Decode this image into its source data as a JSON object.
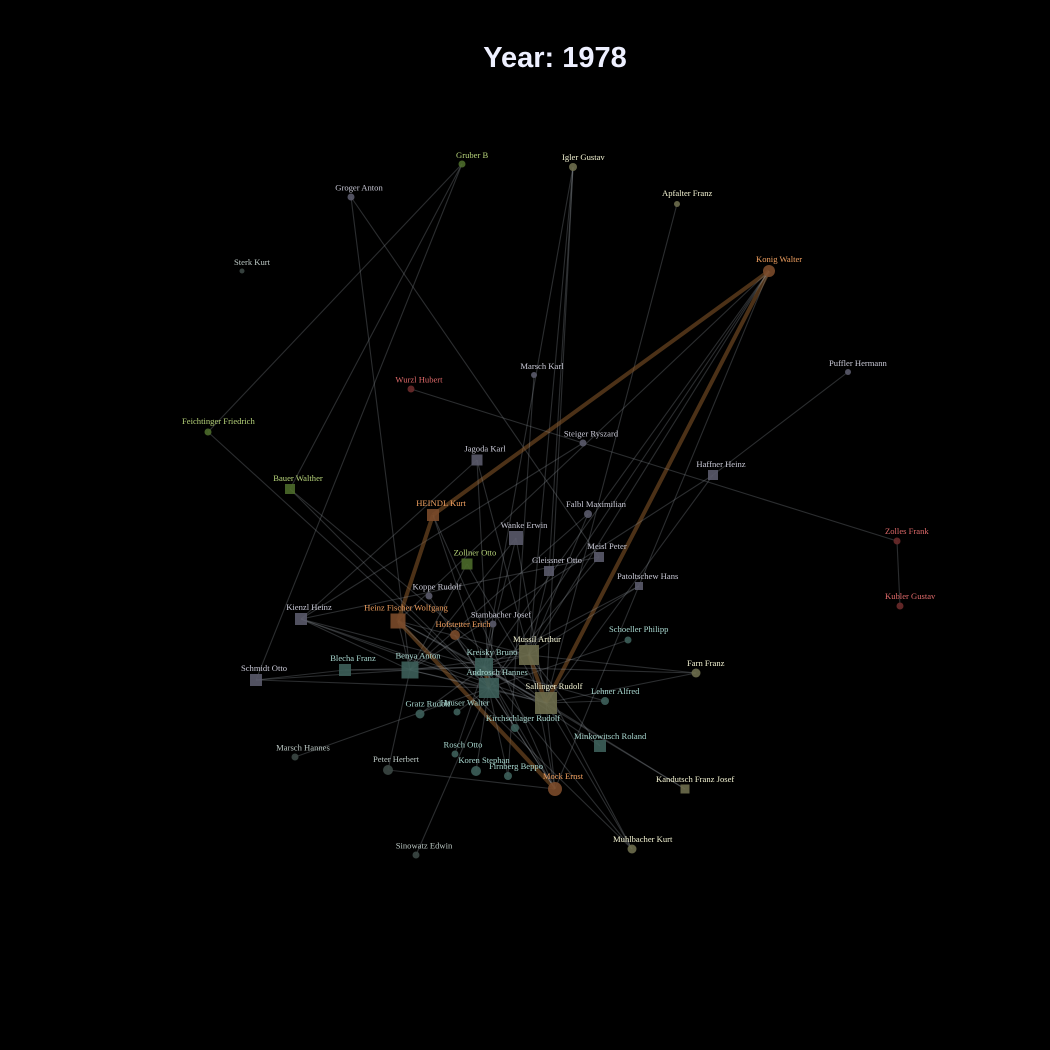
{
  "title": "Year: 1978",
  "groups": {
    "grey": {
      "fill": "#5a5a6a",
      "text": "#c9c9d6"
    },
    "teal": {
      "fill": "#3d5f5a",
      "text": "#a9d8d0"
    },
    "olive": {
      "fill": "#4b6a2a",
      "text": "#b7d47a"
    },
    "orange": {
      "fill": "#7a4a2a",
      "text": "#f0a060"
    },
    "red": {
      "fill": "#6a2a2a",
      "text": "#e06a6a"
    },
    "sand": {
      "fill": "#6d6d4c",
      "text": "#f3f3d2"
    },
    "dark": {
      "fill": "#3b4744",
      "text": "#bcc8c4"
    }
  },
  "nodes": [
    {
      "id": "Gruber B",
      "group": "olive",
      "shape": "circle"
    },
    {
      "id": "Igler Gustav",
      "group": "sand",
      "shape": "circle"
    },
    {
      "id": "Groger Anton",
      "group": "grey",
      "shape": "circle"
    },
    {
      "id": "Apfalter Franz",
      "group": "sand",
      "shape": "circle"
    },
    {
      "id": "Sterk Kurt",
      "group": "dark",
      "shape": "circle"
    },
    {
      "id": "Konig Walter",
      "group": "orange",
      "shape": "circle"
    },
    {
      "id": "Puffler Hermann",
      "group": "grey",
      "shape": "circle"
    },
    {
      "id": "Marsch Karl",
      "group": "grey",
      "shape": "circle"
    },
    {
      "id": "Wurzl Hubert",
      "group": "red",
      "shape": "circle"
    },
    {
      "id": "Feichtinger Friedrich",
      "group": "olive",
      "shape": "circle"
    },
    {
      "id": "Steiger Ryszard",
      "group": "grey",
      "shape": "circle"
    },
    {
      "id": "Jagoda Karl",
      "group": "grey",
      "shape": "square"
    },
    {
      "id": "Haffner Heinz",
      "group": "grey",
      "shape": "square"
    },
    {
      "id": "Bauer Walther",
      "group": "olive",
      "shape": "square"
    },
    {
      "id": "HEINDL Kurt",
      "group": "orange",
      "shape": "square"
    },
    {
      "id": "Falbl Maximilian",
      "group": "grey",
      "shape": "circle"
    },
    {
      "id": "Wanke Erwin",
      "group": "grey",
      "shape": "square"
    },
    {
      "id": "Zolles Frank",
      "group": "red",
      "shape": "circle"
    },
    {
      "id": "Meisl Peter",
      "group": "grey",
      "shape": "square"
    },
    {
      "id": "Zollner Otto",
      "group": "olive",
      "shape": "square"
    },
    {
      "id": "Gleissner Otto",
      "group": "grey",
      "shape": "square"
    },
    {
      "id": "Patoltschew Hans",
      "group": "grey",
      "shape": "square"
    },
    {
      "id": "Koppe Rudolf",
      "group": "grey",
      "shape": "circle"
    },
    {
      "id": "Kubler Gustav",
      "group": "red",
      "shape": "circle"
    },
    {
      "id": "Kienzl Heinz",
      "group": "grey",
      "shape": "square"
    },
    {
      "id": "Heinz Fischer Wolfgang",
      "group": "orange",
      "shape": "square"
    },
    {
      "id": "Stambacher Josef",
      "group": "grey",
      "shape": "circle"
    },
    {
      "id": "Hofstetter Erich",
      "group": "orange",
      "shape": "circle"
    },
    {
      "id": "Schoeller Philipp",
      "group": "teal",
      "shape": "circle"
    },
    {
      "id": "Mussil Arthur",
      "group": "sand",
      "shape": "square"
    },
    {
      "id": "Kreisky Bruno",
      "group": "teal",
      "shape": "square"
    },
    {
      "id": "Benya Anton",
      "group": "teal",
      "shape": "square"
    },
    {
      "id": "Blecha Franz",
      "group": "teal",
      "shape": "square"
    },
    {
      "id": "Farn Franz",
      "group": "sand",
      "shape": "circle"
    },
    {
      "id": "Schmidt Otto",
      "group": "grey",
      "shape": "square"
    },
    {
      "id": "Androsch Hannes",
      "group": "teal",
      "shape": "square"
    },
    {
      "id": "Sallinger Rudolf",
      "group": "sand",
      "shape": "square"
    },
    {
      "id": "Lehner Alfred",
      "group": "teal",
      "shape": "circle"
    },
    {
      "id": "Gratz Rudolf",
      "group": "teal",
      "shape": "circle"
    },
    {
      "id": "Hauser Walter",
      "group": "teal",
      "shape": "circle"
    },
    {
      "id": "Kirchschlager Rudolf",
      "group": "teal",
      "shape": "circle"
    },
    {
      "id": "Minkowitsch Roland",
      "group": "teal",
      "shape": "square"
    },
    {
      "id": "Marsch Hannes",
      "group": "dark",
      "shape": "circle"
    },
    {
      "id": "Rosch Otto",
      "group": "teal",
      "shape": "circle"
    },
    {
      "id": "Peter Herbert",
      "group": "dark",
      "shape": "circle"
    },
    {
      "id": "Koren Stephan",
      "group": "teal",
      "shape": "circle"
    },
    {
      "id": "Firnberg Beppo",
      "group": "teal",
      "shape": "circle"
    },
    {
      "id": "Mock Ernst",
      "group": "orange",
      "shape": "circle"
    },
    {
      "id": "Kandutsch Franz Josef",
      "group": "sand",
      "shape": "square"
    },
    {
      "id": "Muhlbacher Kurt",
      "group": "sand",
      "shape": "circle"
    },
    {
      "id": "Sinowatz Edwin",
      "group": "dark",
      "shape": "circle"
    }
  ],
  "edges": [
    [
      "Gruber B",
      "Bauer Walther"
    ],
    [
      "Gruber B",
      "Feichtinger Friedrich"
    ],
    [
      "Gruber B",
      "Schmidt Otto"
    ],
    [
      "Igler Gustav",
      "Gleissner Otto"
    ],
    [
      "Igler Gustav",
      "Sallinger Rudolf"
    ],
    [
      "Igler Gustav",
      "Kreisky Bruno"
    ],
    [
      "Igler Gustav",
      "Mussil Arthur"
    ],
    [
      "Groger Anton",
      "Benya Anton"
    ],
    [
      "Groger Anton",
      "Meisl Peter"
    ],
    [
      "Apfalter Franz",
      "Sallinger Rudolf"
    ],
    [
      "Konig Walter",
      "HEINDL Kurt"
    ],
    [
      "Konig Walter",
      "Heinz Fischer Wolfgang"
    ],
    [
      "Konig Walter",
      "Mussil Arthur"
    ],
    [
      "Konig Walter",
      "Sallinger Rudolf"
    ],
    [
      "Konig Walter",
      "Androsch Hannes"
    ],
    [
      "Konig Walter",
      "Mock Ernst"
    ],
    [
      "Konig Walter",
      "Kreisky Bruno"
    ],
    [
      "Puffler Hermann",
      "Haffner Heinz"
    ],
    [
      "Wurzl Hubert",
      "Steiger Ryszard"
    ],
    [
      "Marsch Karl",
      "Firnberg Beppo"
    ],
    [
      "Steiger Ryszard",
      "Zolles Frank"
    ],
    [
      "Steiger Ryszard",
      "Kienzl Heinz"
    ],
    [
      "Zolles Frank",
      "Kubler Gustav"
    ],
    [
      "Feichtinger Friedrich",
      "Androsch Hannes"
    ],
    [
      "Jagoda Karl",
      "Mussil Arthur"
    ],
    [
      "Jagoda Karl",
      "Kienzl Heinz"
    ],
    [
      "Jagoda Karl",
      "Androsch Hannes"
    ],
    [
      "Haffner Heinz",
      "Sallinger Rudolf"
    ],
    [
      "Haffner Heinz",
      "Benya Anton"
    ],
    [
      "Bauer Walther",
      "Sallinger Rudolf"
    ],
    [
      "Bauer Walther",
      "Androsch Hannes"
    ],
    [
      "HEINDL Kurt",
      "Heinz Fischer Wolfgang"
    ],
    [
      "HEINDL Kurt",
      "Kreisky Bruno"
    ],
    [
      "HEINDL Kurt",
      "Mock Ernst"
    ],
    [
      "Falbl Maximilian",
      "Benya Anton"
    ],
    [
      "Falbl Maximilian",
      "Mussil Arthur"
    ],
    [
      "Wanke Erwin",
      "Kreisky Bruno"
    ],
    [
      "Wanke Erwin",
      "Sallinger Rudolf"
    ],
    [
      "Wanke Erwin",
      "Benya Anton"
    ],
    [
      "Meisl Peter",
      "Androsch Hannes"
    ],
    [
      "Meisl Peter",
      "Kienzl Heinz"
    ],
    [
      "Zollner Otto",
      "Sallinger Rudolf"
    ],
    [
      "Zollner Otto",
      "Benya Anton"
    ],
    [
      "Gleissner Otto",
      "Mussil Arthur"
    ],
    [
      "Patoltschew Hans",
      "Mussil Arthur"
    ],
    [
      "Patoltschew Hans",
      "Kreisky Bruno"
    ],
    [
      "Koppe Rudolf",
      "Androsch Hannes"
    ],
    [
      "Kienzl Heinz",
      "Kreisky Bruno"
    ],
    [
      "Kienzl Heinz",
      "Benya Anton"
    ],
    [
      "Kienzl Heinz",
      "Androsch Hannes"
    ],
    [
      "Kienzl Heinz",
      "Sallinger Rudolf"
    ],
    [
      "Heinz Fischer Wolfgang",
      "Kreisky Bruno"
    ],
    [
      "Heinz Fischer Wolfgang",
      "Mussil Arthur"
    ],
    [
      "Heinz Fischer Wolfgang",
      "Sallinger Rudolf"
    ],
    [
      "Heinz Fischer Wolfgang",
      "Benya Anton"
    ],
    [
      "Heinz Fischer Wolfgang",
      "Mock Ernst"
    ],
    [
      "Stambacher Josef",
      "Androsch Hannes"
    ],
    [
      "Hofstetter Erich",
      "Kreisky Bruno"
    ],
    [
      "Hofstetter Erich",
      "Mock Ernst"
    ],
    [
      "Schoeller Philipp",
      "Androsch Hannes"
    ],
    [
      "Mussil Arthur",
      "Sallinger Rudolf"
    ],
    [
      "Mussil Arthur",
      "Benya Anton"
    ],
    [
      "Mussil Arthur",
      "Kreisky Bruno"
    ],
    [
      "Mussil Arthur",
      "Farn Franz"
    ],
    [
      "Kreisky Bruno",
      "Androsch Hannes"
    ],
    [
      "Kreisky Bruno",
      "Benya Anton"
    ],
    [
      "Kreisky Bruno",
      "Sallinger Rudolf"
    ],
    [
      "Kreisky Bruno",
      "Blecha Franz"
    ],
    [
      "Benya Anton",
      "Sallinger Rudolf"
    ],
    [
      "Benya Anton",
      "Androsch Hannes"
    ],
    [
      "Benya Anton",
      "Schmidt Otto"
    ],
    [
      "Benya Anton",
      "Blecha Franz"
    ],
    [
      "Blecha Franz",
      "Schmidt Otto"
    ],
    [
      "Farn Franz",
      "Kreisky Bruno"
    ],
    [
      "Farn Franz",
      "Sallinger Rudolf"
    ],
    [
      "Schmidt Otto",
      "Androsch Hannes"
    ],
    [
      "Androsch Hannes",
      "Sallinger Rudolf"
    ],
    [
      "Androsch Hannes",
      "Mock Ernst"
    ],
    [
      "Sallinger Rudolf",
      "Mock Ernst"
    ],
    [
      "Sallinger Rudolf",
      "Muhlbacher Kurt"
    ],
    [
      "Sallinger Rudolf",
      "Lehner Alfred"
    ],
    [
      "Sallinger Rudolf",
      "Kandutsch Franz Josef"
    ],
    [
      "Lehner Alfred",
      "Kreisky Bruno"
    ],
    [
      "Gratz Rudolf",
      "Kreisky Bruno"
    ],
    [
      "Hauser Walter",
      "Androsch Hannes"
    ],
    [
      "Kirchschlager Rudolf",
      "Kreisky Bruno"
    ],
    [
      "Minkowitsch Roland",
      "Mussil Arthur"
    ],
    [
      "Minkowitsch Roland",
      "Kreisky Bruno"
    ],
    [
      "Marsch Hannes",
      "Androsch Hannes"
    ],
    [
      "Rosch Otto",
      "Kreisky Bruno"
    ],
    [
      "Peter Herbert",
      "Mock Ernst"
    ],
    [
      "Peter Herbert",
      "Benya Anton"
    ],
    [
      "Koren Stephan",
      "Androsch Hannes"
    ],
    [
      "Firnberg Beppo",
      "Kreisky Bruno"
    ],
    [
      "Mock Ernst",
      "Kreisky Bruno"
    ],
    [
      "Mock Ernst",
      "Mussil Arthur"
    ],
    [
      "Kandutsch Franz Josef",
      "Kreisky Bruno"
    ],
    [
      "Muhlbacher Kurt",
      "Mussil Arthur"
    ],
    [
      "Muhlbacher Kurt",
      "Kreisky Bruno"
    ],
    [
      "Muhlbacher Kurt",
      "Heinz Fischer Wolfgang"
    ],
    [
      "Sinowatz Edwin",
      "Androsch Hannes"
    ]
  ],
  "heavy_edges": [
    [
      "Konig Walter",
      "HEINDL Kurt"
    ],
    [
      "Konig Walter",
      "Sallinger Rudolf"
    ],
    [
      "Heinz Fischer Wolfgang",
      "Mock Ernst"
    ],
    [
      "HEINDL Kurt",
      "Heinz Fischer Wolfgang"
    ],
    [
      "Mussil Arthur",
      "Sallinger Rudolf"
    ],
    [
      "Kreisky Bruno",
      "Androsch Hannes"
    ]
  ]
}
